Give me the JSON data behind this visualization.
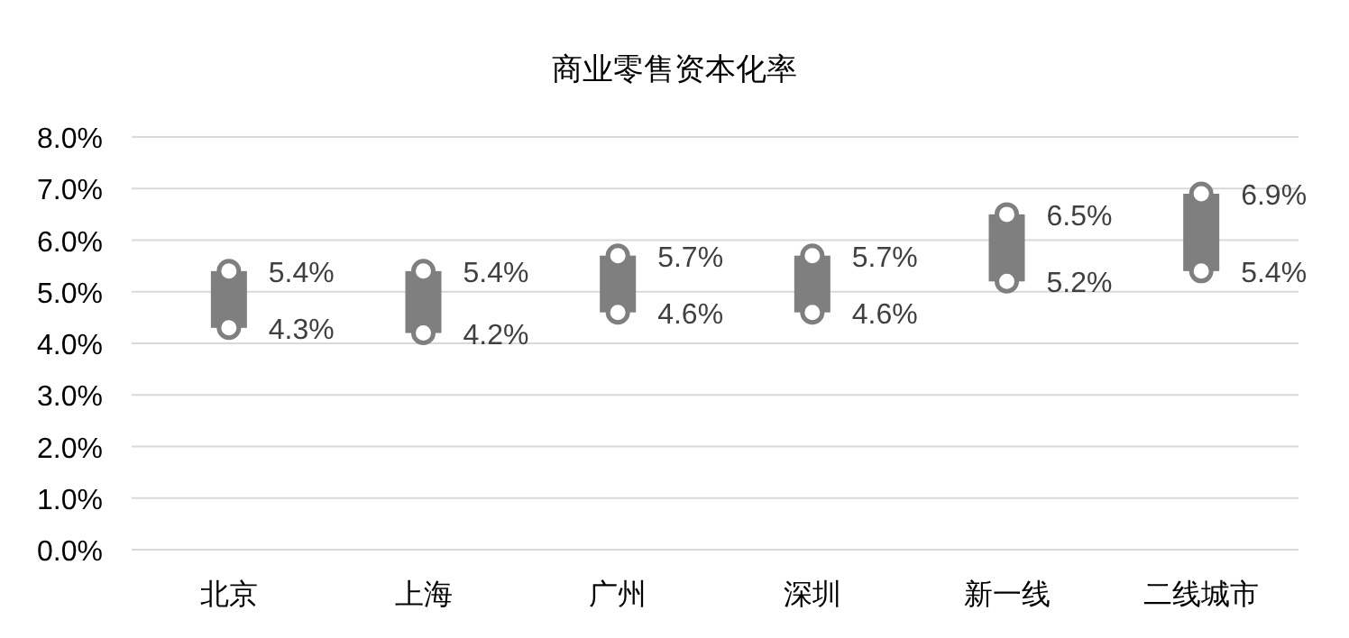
{
  "chart_data": {
    "type": "bar",
    "title": "商业零售资本化率",
    "categories": [
      "北京",
      "上海",
      "广州",
      "深圳",
      "新一线",
      "二线城市"
    ],
    "series": [
      {
        "color": "#7f7f7f",
        "base": [
          4.3,
          4.2,
          4.6,
          4.6,
          5.2,
          5.4
        ],
        "values": [
          1.1,
          1.2,
          1.1,
          1.1,
          1.3,
          1.5
        ]
      },
      {
        "type": "scatter",
        "marker": "circle",
        "color": "#7f7f7f",
        "values": [
          5.4,
          5.4,
          5.7,
          5.7,
          6.5,
          6.9
        ],
        "value_labels": [
          "5.4%",
          "5.4%",
          "5.7%",
          "5.7%",
          "6.5%",
          "6.9%"
        ]
      },
      {
        "type": "scatter",
        "marker": "circle",
        "color": "#7f7f7f",
        "values": [
          4.3,
          4.2,
          4.6,
          4.6,
          5.2,
          5.4
        ],
        "value_labels": [
          "4.3%",
          "4.2%",
          "4.6%",
          "4.6%",
          "5.2%",
          "5.4%"
        ]
      }
    ],
    "ylim": [
      0,
      8
    ],
    "yticks": [
      {
        "value": 0,
        "label": "0.0%"
      },
      {
        "value": 1,
        "label": "1.0%"
      },
      {
        "value": 2,
        "label": "2.0%"
      },
      {
        "value": 3,
        "label": "3.0%"
      },
      {
        "value": 4,
        "label": "4.0%"
      },
      {
        "value": 5,
        "label": "5.0%"
      },
      {
        "value": 6,
        "label": "6.0%"
      },
      {
        "value": 7,
        "label": "7.0%"
      },
      {
        "value": 8,
        "label": "8.0%"
      }
    ],
    "grid": "y"
  }
}
